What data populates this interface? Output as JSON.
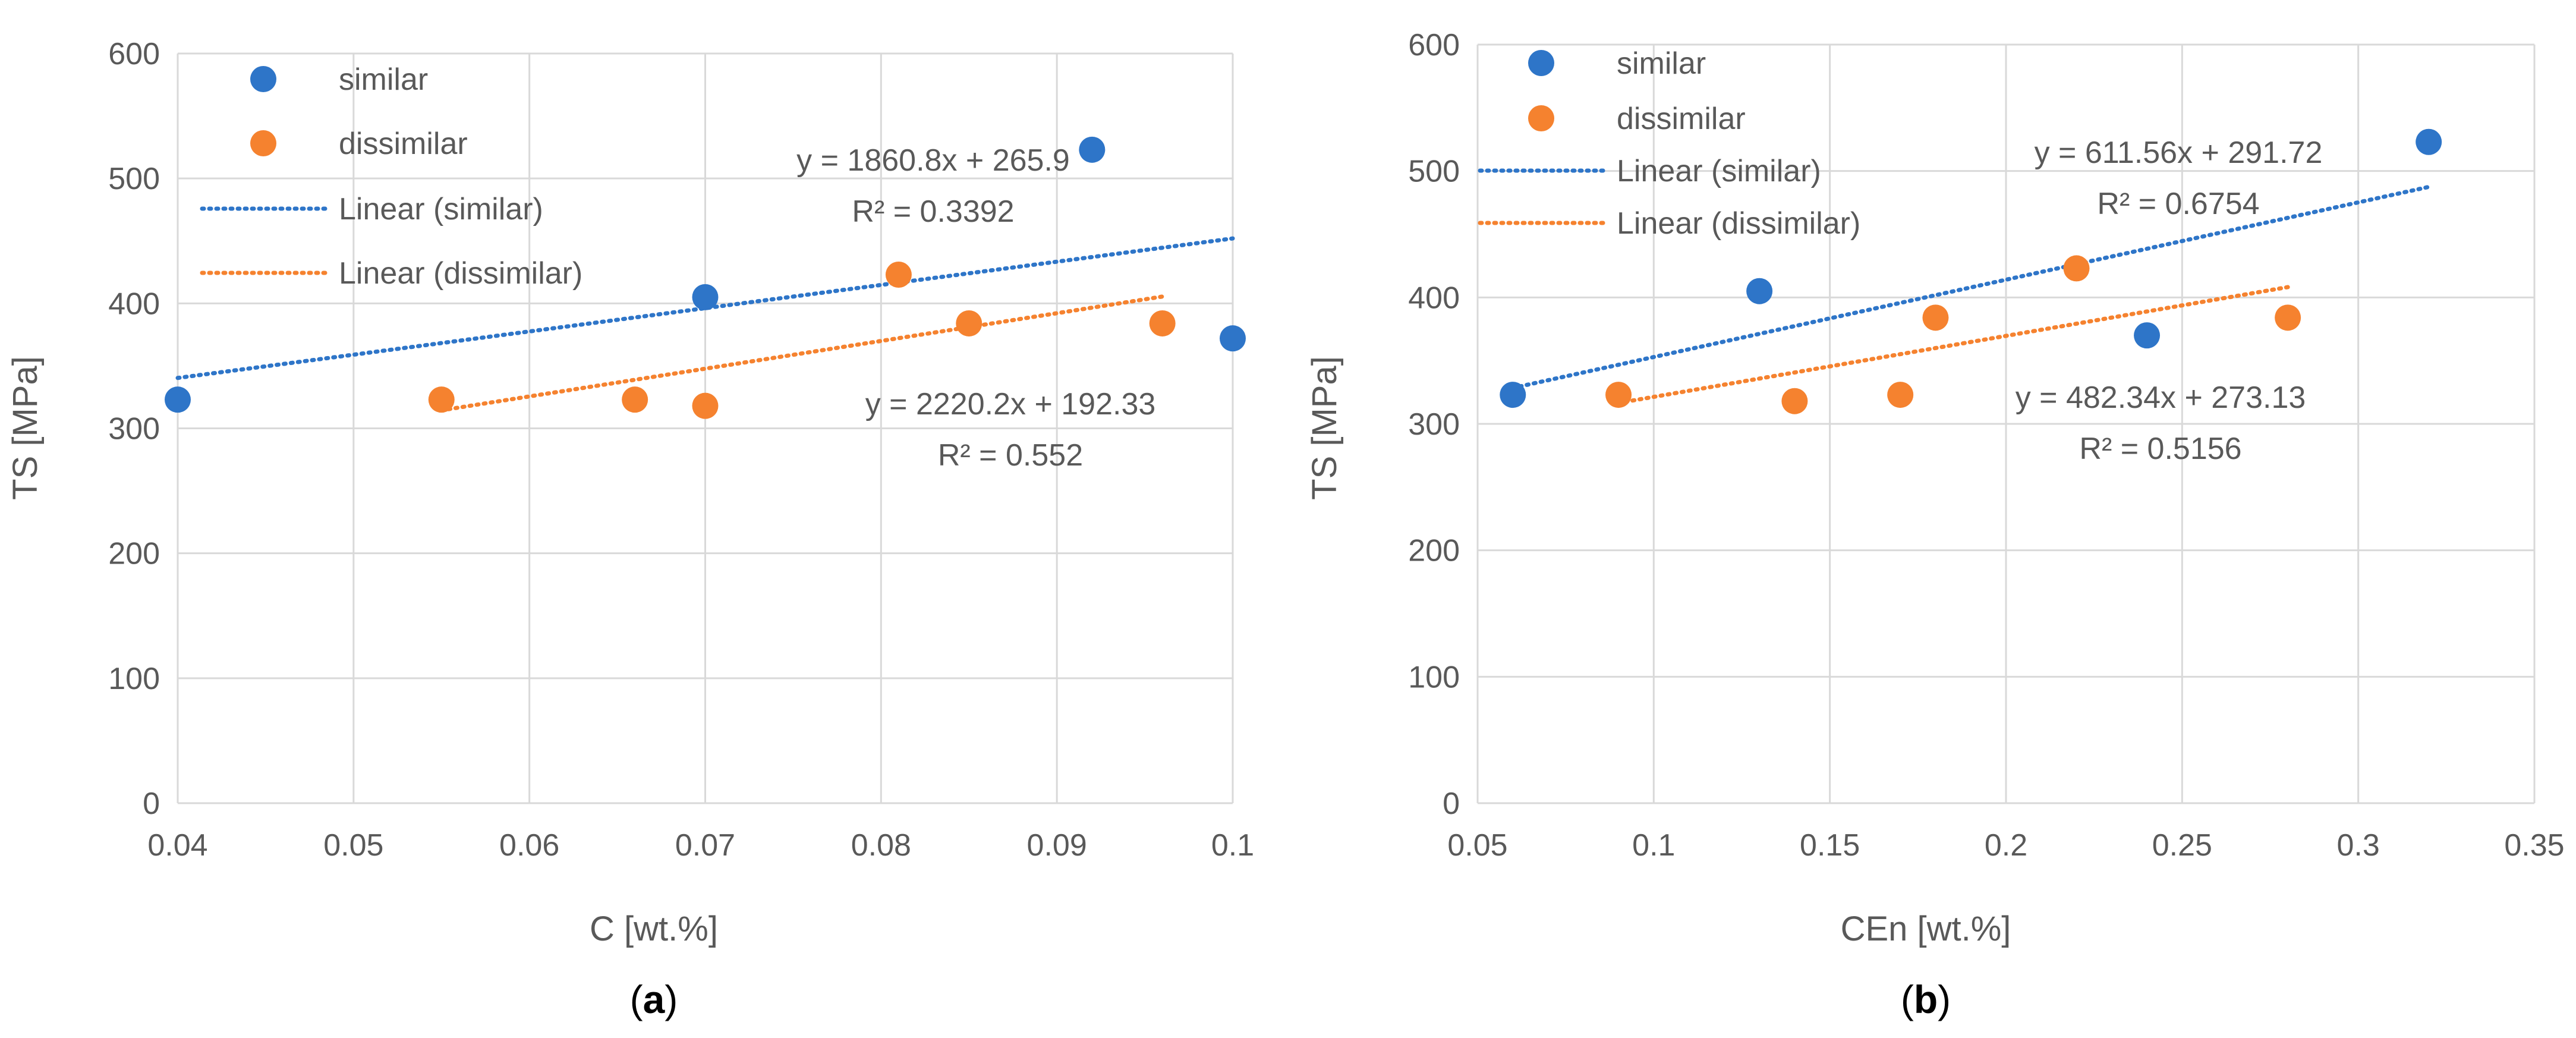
{
  "chart_data": [
    {
      "type": "scatter",
      "panel_label": "a",
      "xlabel": "C [wt.%]",
      "ylabel": "TS [MPa]",
      "xlim": [
        0.04,
        0.1
      ],
      "ylim": [
        0,
        600
      ],
      "x_ticks": [
        "0.04",
        "0.05",
        "0.06",
        "0.07",
        "0.08",
        "0.09",
        "0.1"
      ],
      "y_ticks": [
        "0",
        "100",
        "200",
        "300",
        "400",
        "500",
        "600"
      ],
      "grid": true,
      "legend_position": "top-left",
      "series": [
        {
          "name": "similar",
          "color": "#2E75C8",
          "points": [
            [
              0.04,
              323
            ],
            [
              0.07,
              405
            ],
            [
              0.092,
              523
            ],
            [
              0.1,
              372
            ]
          ],
          "trend": {
            "label": "Linear (similar)",
            "slope": 1860.8,
            "intercept": 265.9,
            "x_range": [
              0.04,
              0.1
            ],
            "equation": "y = 1860.8x + 265.9",
            "r2": "R² = 0.3392"
          }
        },
        {
          "name": "dissimilar",
          "color": "#F5822F",
          "points": [
            [
              0.055,
              323
            ],
            [
              0.066,
              323
            ],
            [
              0.07,
              318
            ],
            [
              0.081,
              423
            ],
            [
              0.085,
              384
            ],
            [
              0.096,
              384
            ]
          ],
          "trend": {
            "label": "Linear (dissimilar)",
            "slope": 2220.2,
            "intercept": 192.33,
            "x_range": [
              0.055,
              0.096
            ],
            "equation": "y = 2220.2x + 192.33",
            "r2": "R² = 0.552"
          }
        }
      ]
    },
    {
      "type": "scatter",
      "panel_label": "b",
      "xlabel": "CEn [wt.%]",
      "ylabel": "TS [MPa]",
      "xlim": [
        0.05,
        0.35
      ],
      "ylim": [
        0,
        600
      ],
      "x_ticks": [
        "0.05",
        "0.1",
        "0.15",
        "0.2",
        "0.25",
        "0.3",
        "0.35"
      ],
      "y_ticks": [
        "0",
        "100",
        "200",
        "300",
        "400",
        "500",
        "600"
      ],
      "grid": true,
      "legend_position": "top-left",
      "series": [
        {
          "name": "similar",
          "color": "#2E75C8",
          "points": [
            [
              0.06,
              323
            ],
            [
              0.13,
              405
            ],
            [
              0.24,
              370
            ],
            [
              0.32,
              523
            ]
          ],
          "trend": {
            "label": "Linear (similar)",
            "slope": 611.56,
            "intercept": 291.72,
            "x_range": [
              0.06,
              0.32
            ],
            "equation": "y = 611.56x + 291.72",
            "r2": "R² = 0.6754"
          }
        },
        {
          "name": "dissimilar",
          "color": "#F5822F",
          "points": [
            [
              0.09,
              323
            ],
            [
              0.14,
              318
            ],
            [
              0.17,
              323
            ],
            [
              0.18,
              384
            ],
            [
              0.22,
              423
            ],
            [
              0.28,
              384
            ]
          ],
          "trend": {
            "label": "Linear (dissimilar)",
            "slope": 482.34,
            "intercept": 273.13,
            "x_range": [
              0.09,
              0.28
            ],
            "equation": "y = 482.34x + 273.13",
            "r2": "R² = 0.5156"
          }
        }
      ]
    }
  ]
}
